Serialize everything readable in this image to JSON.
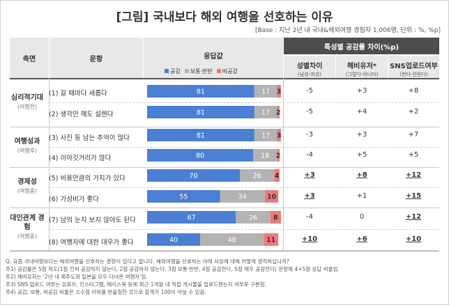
{
  "title": "[그림] 국내보다 해외 여행을 선호하는 이유",
  "base_note": "[Base : 지난 2년 내 국내&해외여행 경험자 1,006명, 단위 : %, %p]",
  "headers": {
    "aspect": "측면",
    "item": "문항",
    "response": "응답값",
    "diff_group": "특성별 공감률 차이(%p)",
    "gender": "성별차이",
    "gender_sub": "(남성-여성)",
    "hebi": "헤비유저*",
    "hebi_sub": "(그렇다-아니다)",
    "sns": "SNS업로드여부",
    "sns_sub": "(한다-안한다)"
  },
  "legend": {
    "agree": "공감",
    "neutral": "보통·반반",
    "disagree": "비공감"
  },
  "colors": {
    "agree": "#4a7fd4",
    "neutral": "#b3b3b3",
    "disagree": "#f07878",
    "header_dark": "#4d4d4d",
    "header_gray": "#e8e8e8"
  },
  "categories": [
    {
      "name": "심리적기대",
      "sub": "(여행전)"
    },
    {
      "name": "여행성과",
      "sub": "(여행후)"
    },
    {
      "name": "경제성",
      "sub": "(여행중)"
    },
    {
      "name": "대인관계 경험",
      "sub": "(여행중)"
    }
  ],
  "chart_data": {
    "type": "bar",
    "stacked": true,
    "orientation": "horizontal",
    "categories": [
      "(1) 갈 때마다 새롭다",
      "(2) 생각만 해도 설렌다",
      "(3) 사진 등 남는 추억이 많다",
      "(4) 이야깃거리가 많다",
      "(5) 비용만큼의 가치가 있다",
      "(6) 가성비가 좋다",
      "(7) 남의 눈치 보지 않아도 된다",
      "(8) 여행자에 대한 대우가 좋다"
    ],
    "series": [
      {
        "name": "공감",
        "values": [
          81,
          81,
          81,
          80,
          70,
          55,
          67,
          40
        ]
      },
      {
        "name": "보통·반반",
        "values": [
          17,
          17,
          17,
          18,
          26,
          34,
          26,
          48
        ]
      },
      {
        "name": "비공감",
        "values": [
          3,
          2,
          3,
          2,
          4,
          10,
          8,
          11
        ]
      }
    ],
    "xlim": [
      0,
      100
    ],
    "diffs": {
      "gender": [
        "-5",
        "-5",
        "-3",
        "-4",
        "+3",
        "+3",
        "-4",
        "+10"
      ],
      "hebi": [
        "+3",
        "+4",
        "+3",
        "+5",
        "+8",
        "+1",
        "0",
        "+6"
      ],
      "sns": [
        "+8",
        "+2",
        "+7",
        "+5",
        "+12",
        "+15",
        "+12",
        "+10"
      ],
      "gender_bold": [
        false,
        false,
        false,
        false,
        true,
        true,
        false,
        true
      ],
      "hebi_bold": [
        false,
        false,
        false,
        false,
        true,
        false,
        false,
        true
      ],
      "sns_bold": [
        false,
        false,
        false,
        false,
        true,
        true,
        true,
        true
      ]
    }
  },
  "notes": [
    "Q. 요즘 국내여행보다는 해외여행을 선호하는 경향이 있다고 합니다. 해외여행을 선호하는 아래 사유에 대해 어떻게 생각하십니까?",
    "주1) 공감률은 5점 척도(1점 전혀 공감하지 않는다, 2점 공감하지 않는다, 3점 보통·반반, 4점 공감한다, 5점 매우 공감한다) 문항에 4+5점 응답 비율임.",
    "주2) 헤비유저는 '2년 내 제주도와 일본을 모두 다녀온 여행자'임.",
    "주3) SNS 업로드 여부는 유튜브, 인스타그램, 페이스북 등에 최근 1개월 내 직접 게시물을 업로드했는지 여부로 구분함.",
    "주4) 공감, 보통, 비공감 비율은 소수점 이하를 반올림한 것으로 합계가 100이 아닐 수 있음."
  ]
}
